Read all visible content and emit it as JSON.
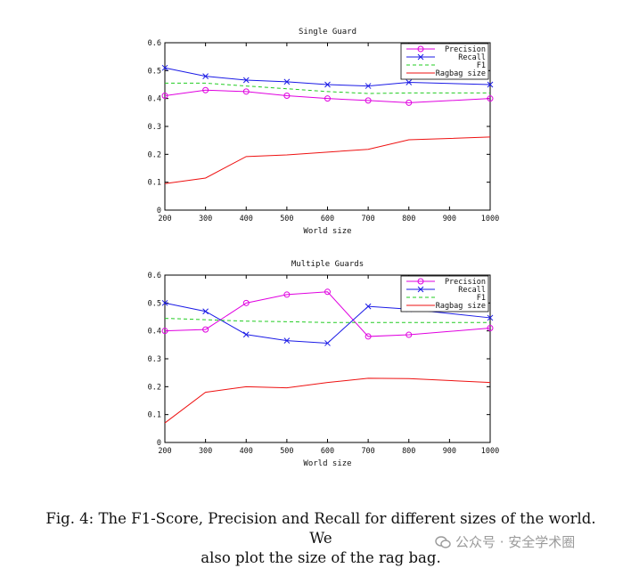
{
  "chart_data": [
    {
      "type": "line",
      "title": "Single Guard",
      "xlabel": "World size",
      "ylabel": "",
      "x": [
        200,
        300,
        400,
        500,
        600,
        700,
        800,
        900,
        1000
      ],
      "xlim": [
        200,
        1000
      ],
      "ylim": [
        0,
        0.6
      ],
      "xticks": [
        "200",
        "300",
        "400",
        "500",
        "600",
        "700",
        "800",
        "900",
        "1000"
      ],
      "yticks": [
        "0",
        "0.1",
        "0.2",
        "0.3",
        "0.4",
        "0.5",
        "0.6"
      ],
      "grid": false,
      "legend_position": "top-right",
      "series": [
        {
          "name": "Precision",
          "color": "#e000e0",
          "marker": "circle",
          "dash": "",
          "x": [
            200,
            300,
            400,
            500,
            600,
            700,
            800,
            1000
          ],
          "values": [
            0.41,
            0.43,
            0.425,
            0.41,
            0.4,
            0.393,
            0.385,
            0.4
          ]
        },
        {
          "name": "Recall",
          "color": "#1a1ae6",
          "marker": "x",
          "dash": "",
          "x": [
            200,
            300,
            400,
            500,
            600,
            700,
            800,
            1000
          ],
          "values": [
            0.51,
            0.48,
            0.466,
            0.46,
            0.45,
            0.445,
            0.458,
            0.45
          ]
        },
        {
          "name": "F1",
          "color": "#22cc22",
          "marker": "",
          "dash": "4 3",
          "x": [
            200,
            300,
            400,
            500,
            600,
            700,
            800,
            1000
          ],
          "values": [
            0.455,
            0.455,
            0.445,
            0.435,
            0.425,
            0.418,
            0.42,
            0.42
          ]
        },
        {
          "name": "Ragbag size",
          "color": "#ee1111",
          "marker": "",
          "dash": "",
          "x": [
            200,
            300,
            400,
            500,
            600,
            700,
            800,
            1000
          ],
          "values": [
            0.095,
            0.115,
            0.192,
            0.198,
            0.208,
            0.218,
            0.252,
            0.262
          ]
        }
      ]
    },
    {
      "type": "line",
      "title": "Multiple Guards",
      "xlabel": "World size",
      "ylabel": "",
      "x": [
        200,
        300,
        400,
        500,
        600,
        700,
        800,
        900,
        1000
      ],
      "xlim": [
        200,
        1000
      ],
      "ylim": [
        0,
        0.6
      ],
      "xticks": [
        "200",
        "300",
        "400",
        "500",
        "600",
        "700",
        "800",
        "900",
        "1000"
      ],
      "yticks": [
        "0",
        "0.1",
        "0.2",
        "0.3",
        "0.4",
        "0.5",
        "0.6"
      ],
      "grid": false,
      "legend_position": "top-right",
      "series": [
        {
          "name": "Precision",
          "color": "#e000e0",
          "marker": "circle",
          "dash": "",
          "x": [
            200,
            300,
            400,
            500,
            600,
            700,
            800,
            1000
          ],
          "values": [
            0.4,
            0.405,
            0.5,
            0.53,
            0.54,
            0.38,
            0.386,
            0.41
          ]
        },
        {
          "name": "Recall",
          "color": "#1a1ae6",
          "marker": "x",
          "dash": "",
          "x": [
            200,
            300,
            400,
            500,
            600,
            700,
            800,
            1000
          ],
          "values": [
            0.5,
            0.47,
            0.387,
            0.365,
            0.356,
            0.488,
            0.478,
            0.447
          ]
        },
        {
          "name": "F1",
          "color": "#22cc22",
          "marker": "",
          "dash": "4 3",
          "x": [
            200,
            300,
            400,
            500,
            600,
            700,
            800,
            1000
          ],
          "values": [
            0.445,
            0.44,
            0.435,
            0.433,
            0.43,
            0.43,
            0.43,
            0.43
          ]
        },
        {
          "name": "Ragbag size",
          "color": "#ee1111",
          "marker": "",
          "dash": "",
          "x": [
            200,
            300,
            400,
            500,
            600,
            700,
            800,
            1000
          ],
          "values": [
            0.07,
            0.18,
            0.2,
            0.196,
            0.215,
            0.23,
            0.229,
            0.215
          ]
        }
      ]
    }
  ],
  "caption": {
    "line1": "Fig. 4: The F1-Score, Precision and Recall for different sizes of the world. We",
    "line2": "also plot the size of the rag bag."
  },
  "watermark": {
    "icon": "wechat-icon",
    "text": "公众号 · 安全学术圈"
  }
}
